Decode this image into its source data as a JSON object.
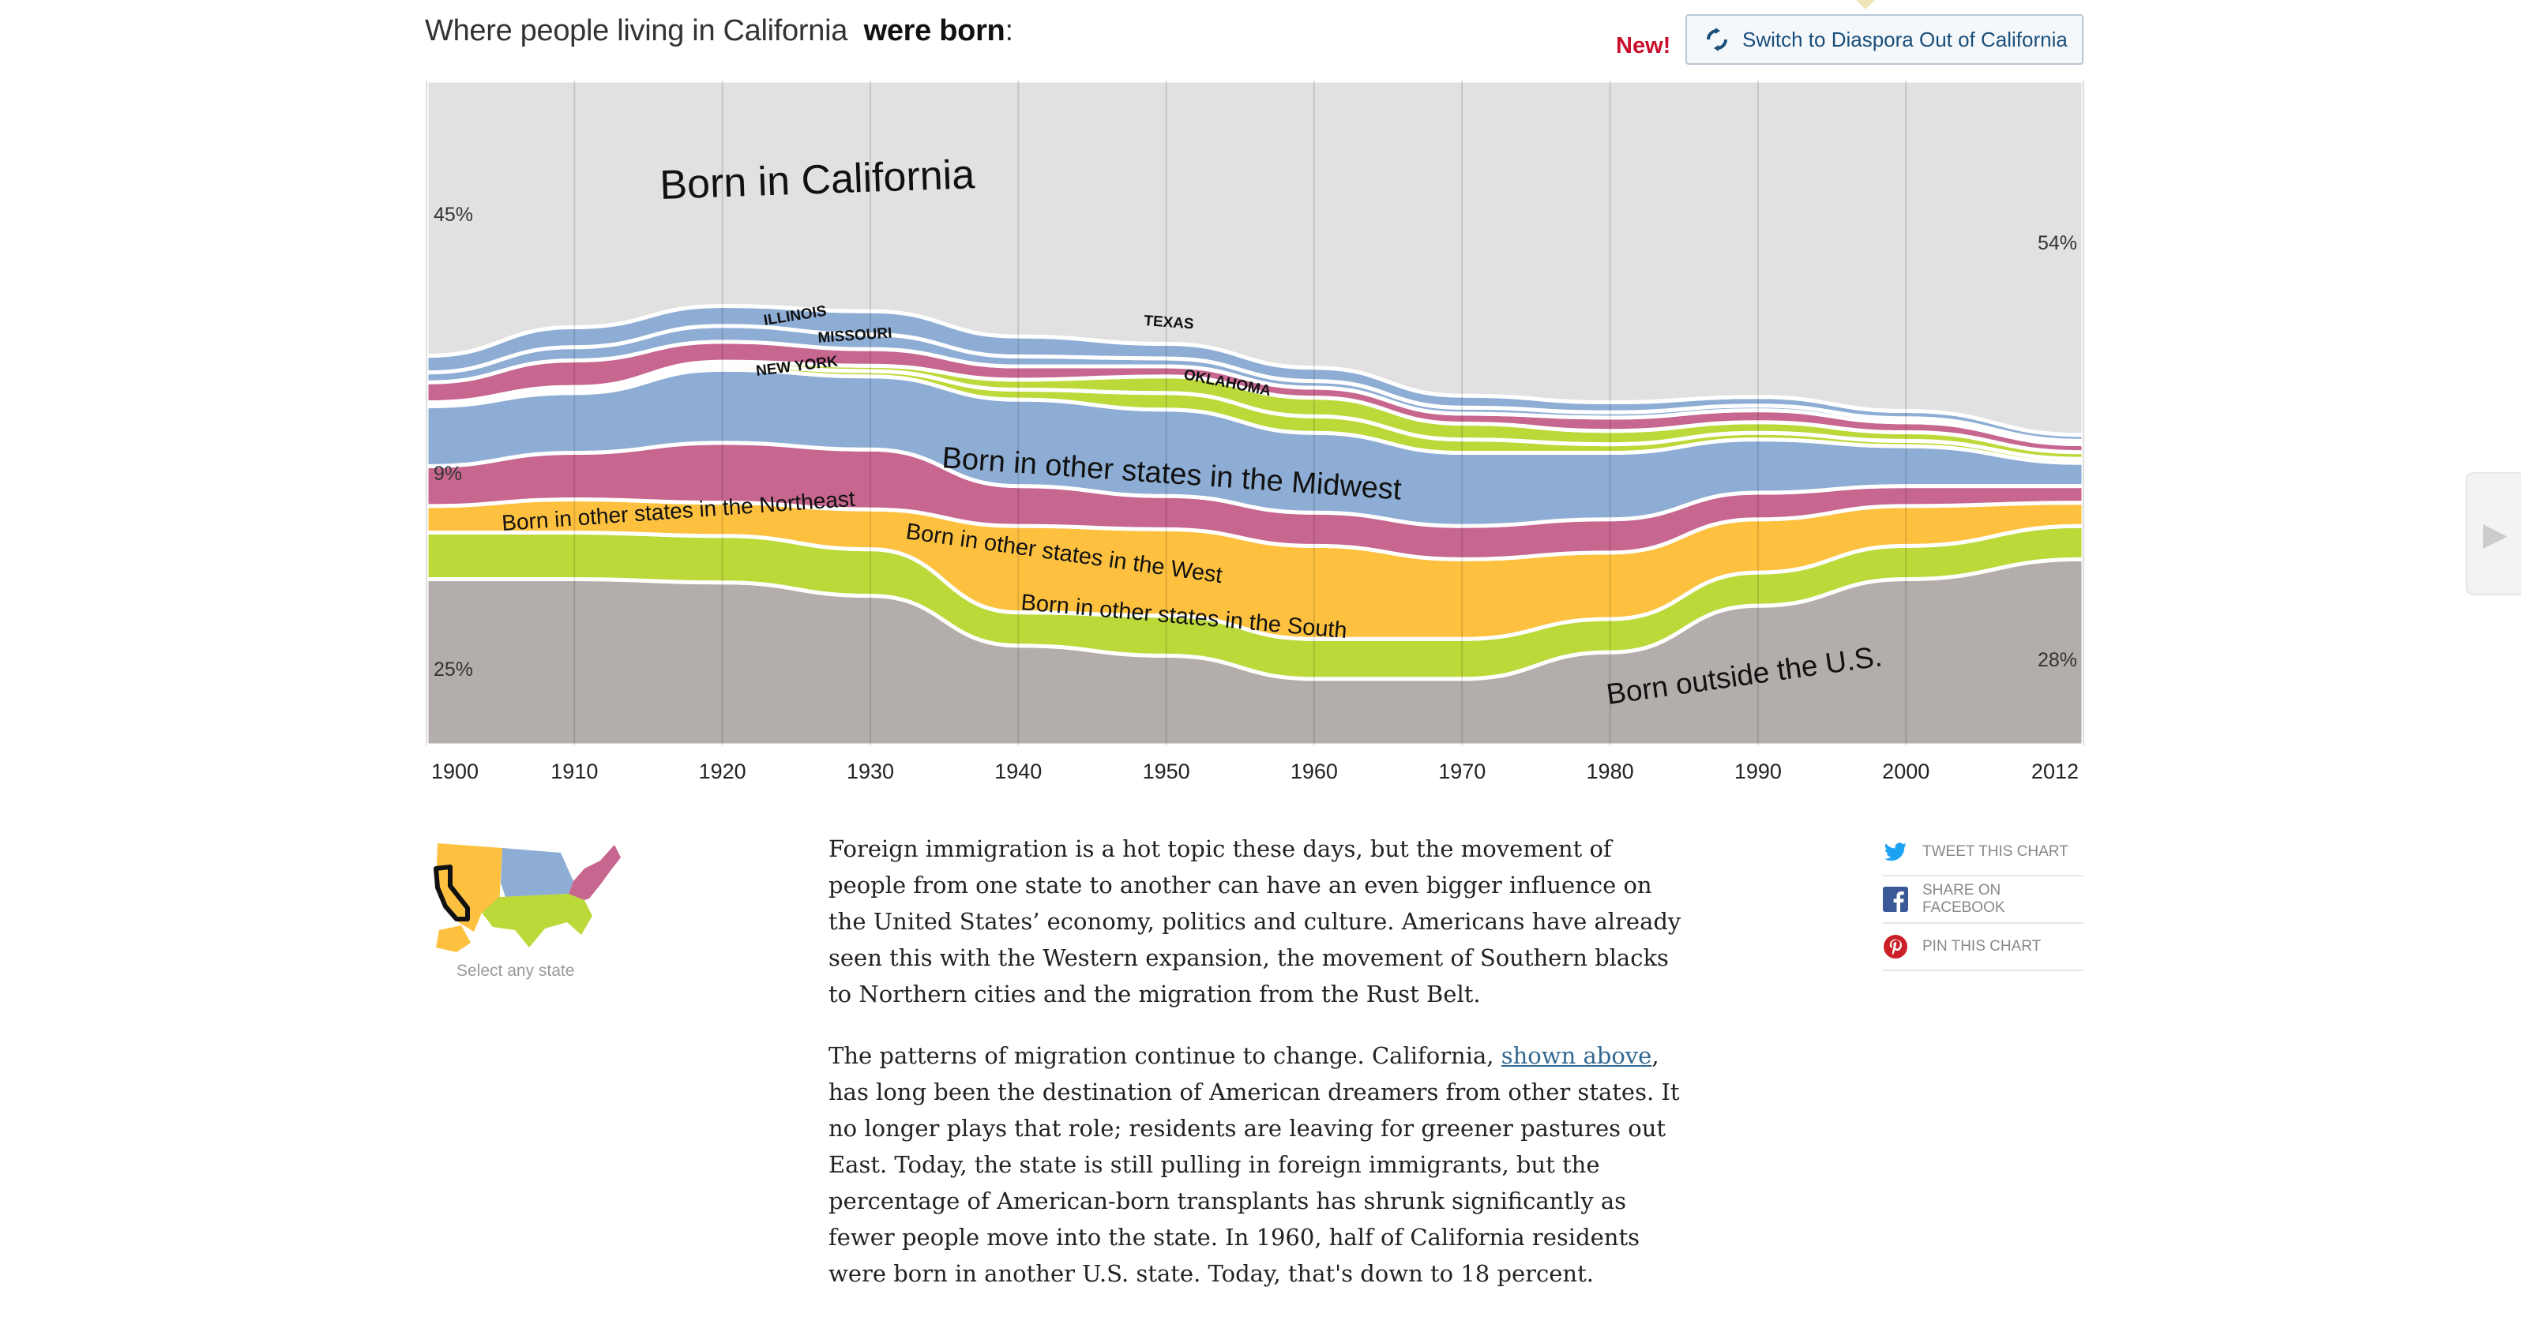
{
  "headline": {
    "prefix": "Where people living in California",
    "bold": "were born",
    "suffix": ":"
  },
  "new_badge": "New!",
  "switch_button": {
    "label": "Switch to Diaspora Out of California",
    "icon": "refresh-icon"
  },
  "chart_data": {
    "type": "area",
    "title": "Where people living in California were born:",
    "x_ticks": [
      "1900",
      "1910",
      "1920",
      "1930",
      "1940",
      "1950",
      "1960",
      "1970",
      "1980",
      "1990",
      "2000",
      "2012"
    ],
    "ylim": [
      0,
      100
    ],
    "series": [
      {
        "name": "Born outside the U.S.",
        "color": "#b3aeac",
        "values": [
          25,
          25,
          24.5,
          22.5,
          15,
          13.5,
          10,
          10,
          14,
          21,
          25,
          28
        ]
      },
      {
        "name": "Born in other states in the South",
        "color": "#bcd93a",
        "values": [
          7,
          7,
          7,
          7,
          5,
          6,
          6,
          6,
          5,
          5,
          5,
          5
        ]
      },
      {
        "name": "Born in other states in the West",
        "color": "#fdc13f",
        "values": [
          4,
          5,
          5,
          6,
          13,
          13,
          14,
          12,
          10,
          8,
          6,
          3.5
        ]
      },
      {
        "name": "Born in other states in the Northeast",
        "color": "#c7668f",
        "values": [
          6,
          7,
          9,
          9,
          6,
          5,
          5,
          5,
          5,
          4,
          3,
          2.5
        ]
      },
      {
        "name": "Born in other states in the Midwest",
        "color": "#8eadd4",
        "values": [
          9,
          9,
          11,
          11,
          13,
          13,
          12,
          11,
          10,
          8,
          6,
          3.5
        ]
      },
      {
        "name": "Oklahoma",
        "color": "#bcd93a",
        "values": [
          0.3,
          0.5,
          0.6,
          0.8,
          1.5,
          2.5,
          2.5,
          2,
          1.3,
          1,
          0.8,
          0.6
        ]
      },
      {
        "name": "Texas",
        "color": "#bcd93a",
        "values": [
          0.3,
          0.4,
          0.6,
          0.8,
          1.5,
          2.5,
          2.8,
          2.4,
          2,
          1.6,
          1.3,
          1
        ]
      },
      {
        "name": "New York",
        "color": "#c7668f",
        "values": [
          3,
          4,
          3,
          2.5,
          2,
          1.5,
          1.5,
          1.5,
          2,
          1.8,
          1.5,
          1.2
        ]
      },
      {
        "name": "Missouri",
        "color": "#8eadd4",
        "values": [
          1.5,
          2,
          2.4,
          2.2,
          1.5,
          1.2,
          1,
          0.9,
          0.8,
          0.7,
          0.6,
          0.5
        ]
      },
      {
        "name": "Illinois",
        "color": "#8eadd4",
        "values": [
          2.5,
          3,
          3,
          3.5,
          3,
          2.2,
          2,
          1.8,
          1.5,
          1.3,
          1.1,
          0.9
        ]
      },
      {
        "name": "Born in California",
        "color": "#e1e1e1",
        "values": [
          45,
          43,
          40,
          42,
          44,
          47,
          50,
          53,
          52,
          54,
          55,
          54
        ]
      }
    ],
    "annotations": {
      "left_top": "45%",
      "left_mid": "9%",
      "left_bottom": "25%",
      "right_top": "54%",
      "right_bottom": "28%"
    },
    "labels": {
      "california": "Born in California",
      "illinois": "ILLINOIS",
      "missouri": "MISSOURI",
      "new_york": "NEW YORK",
      "texas": "TEXAS",
      "oklahoma": "OKLAHOMA",
      "midwest": "Born in other states in the Midwest",
      "northeast": "Born in other states in the Northeast",
      "west": "Born in other states in the West",
      "south": "Born in other states in the South",
      "outside": "Born outside the U.S."
    }
  },
  "map": {
    "caption": "Select any state"
  },
  "article": {
    "p1": "Foreign immigration is a hot topic these days, but the movement of people from one state to another can have an even bigger influence on the United States’ economy, politics and culture. Americans have already seen this with the Western expansion, the movement of Southern blacks to Northern cities and the migration from the Rust Belt.",
    "p2_a": "The patterns of migration continue to change. California, ",
    "p2_link": "shown above",
    "p2_b": ", has long been the destination of American dreamers from other states. It no longer plays that role; residents are leaving for greener pastures out East. Today, the state is still pulling in foreign immigrants, but the percentage of American-born transplants has shrunk significantly as fewer people move into the state. In 1960, half of California residents were born in another U.S. state. Today, that's down to 18 percent."
  },
  "share": {
    "tweet": "TWEET THIS CHART",
    "facebook": "SHARE ON FACEBOOK",
    "pin": "PIN THIS CHART"
  },
  "colors": {
    "accent_red": "#c8102e",
    "link_blue": "#326891",
    "button_text": "#194e7a"
  }
}
